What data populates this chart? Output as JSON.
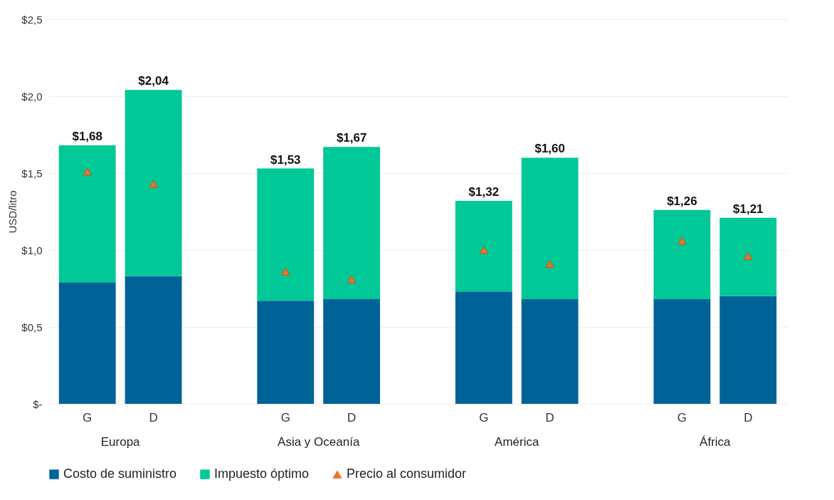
{
  "chart_data": {
    "type": "bar",
    "ylabel": "USD/litro",
    "stacked": true,
    "categories": [
      "G",
      "D",
      "G",
      "D",
      "G",
      "D",
      "G",
      "D"
    ],
    "annotations": [
      "Europa",
      "Asia y Oceanía",
      "América",
      "África"
    ],
    "series": [
      {
        "name": "Costo de suministro",
        "color": "#006398",
        "values": [
          0.79,
          0.83,
          0.67,
          0.68,
          0.73,
          0.68,
          0.68,
          0.7
        ]
      },
      {
        "name": "Impuesto óptimo",
        "color": "#00c897",
        "values": [
          0.89,
          1.21,
          0.86,
          0.99,
          0.59,
          0.92,
          0.58,
          0.51
        ]
      },
      {
        "name": "Precio al consumidor",
        "type": "scatter",
        "marker": "triangle",
        "color": "#e8772e",
        "values": [
          1.51,
          1.43,
          0.86,
          0.81,
          1.0,
          0.91,
          1.06,
          0.96
        ]
      }
    ],
    "totals": [
      "$1,68",
      "$2,04",
      "$1,53",
      "$1,67",
      "$1,32",
      "$1,60",
      "$1,26",
      "$1,21"
    ],
    "ylim": [
      0,
      2.5
    ],
    "yticks": [
      {
        "value": 0,
        "label": "$-"
      },
      {
        "value": 0.5,
        "label": "$0,5"
      },
      {
        "value": 1.0,
        "label": "$1,0"
      },
      {
        "value": 1.5,
        "label": "$1,5"
      },
      {
        "value": 2.0,
        "label": "$2,0"
      },
      {
        "value": 2.5,
        "label": "$2,5"
      }
    ],
    "grid": "y",
    "legend": "bottom"
  }
}
